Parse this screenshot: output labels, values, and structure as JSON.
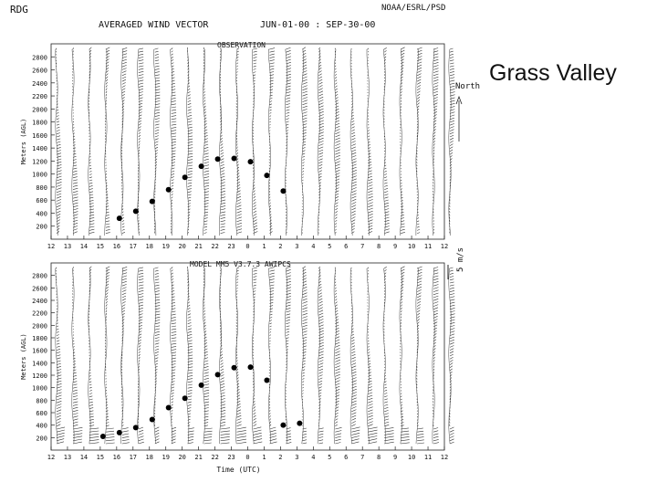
{
  "header": {
    "station": "RDG",
    "title": "AVERAGED WIND VECTOR",
    "date_range": "JUN-01-00 : SEP-30-00",
    "agency": "NOAA/ESRL/PSD"
  },
  "site_name": "Grass Valley",
  "legend": {
    "north_label": "North",
    "scale_label": "5 m/s"
  },
  "chart_data": [
    {
      "type": "scatter",
      "title": "OBSERVATION",
      "ylabel": "Meters (AGL)",
      "xlabel": "",
      "x_tick_labels": [
        "12",
        "13",
        "14",
        "15",
        "16",
        "17",
        "18",
        "19",
        "20",
        "21",
        "22",
        "23",
        "0",
        "1",
        "2",
        "3",
        "4",
        "5",
        "6",
        "7",
        "8",
        "9",
        "10",
        "11",
        "12"
      ],
      "y_ticks": [
        200,
        400,
        600,
        800,
        1000,
        1200,
        1400,
        1600,
        1800,
        2000,
        2200,
        2400,
        2600,
        2800
      ],
      "ylim": [
        0,
        3000
      ],
      "series": [
        {
          "values": [
            {
              "x": "16",
              "y": 320
            },
            {
              "x": "17",
              "y": 430
            },
            {
              "x": "18",
              "y": 580
            },
            {
              "x": "19",
              "y": 760
            },
            {
              "x": "20",
              "y": 950
            },
            {
              "x": "21",
              "y": 1120
            },
            {
              "x": "22",
              "y": 1230
            },
            {
              "x": "23",
              "y": 1240
            },
            {
              "x": "0",
              "y": 1190
            },
            {
              "x": "1",
              "y": 980
            },
            {
              "x": "2",
              "y": 740
            }
          ]
        }
      ]
    },
    {
      "type": "scatter",
      "title": "MODEL MM5 V3.7.3 AWIPCS",
      "ylabel": "Meters (AGL)",
      "xlabel": "Time (UTC)",
      "x_tick_labels": [
        "12",
        "13",
        "14",
        "15",
        "16",
        "17",
        "18",
        "19",
        "20",
        "21",
        "22",
        "23",
        "0",
        "1",
        "2",
        "3",
        "4",
        "5",
        "6",
        "7",
        "8",
        "9",
        "10",
        "11",
        "12"
      ],
      "y_ticks": [
        200,
        400,
        600,
        800,
        1000,
        1200,
        1400,
        1600,
        1800,
        2000,
        2200,
        2400,
        2600,
        2800
      ],
      "ylim": [
        0,
        3000
      ],
      "series": [
        {
          "values": [
            {
              "x": "15",
              "y": 220
            },
            {
              "x": "16",
              "y": 280
            },
            {
              "x": "17",
              "y": 360
            },
            {
              "x": "18",
              "y": 490
            },
            {
              "x": "19",
              "y": 680
            },
            {
              "x": "20",
              "y": 830
            },
            {
              "x": "21",
              "y": 1040
            },
            {
              "x": "22",
              "y": 1210
            },
            {
              "x": "23",
              "y": 1320
            },
            {
              "x": "0",
              "y": 1330
            },
            {
              "x": "1",
              "y": 1120
            },
            {
              "x": "2",
              "y": 400
            },
            {
              "x": "3",
              "y": 430
            }
          ]
        }
      ]
    }
  ]
}
